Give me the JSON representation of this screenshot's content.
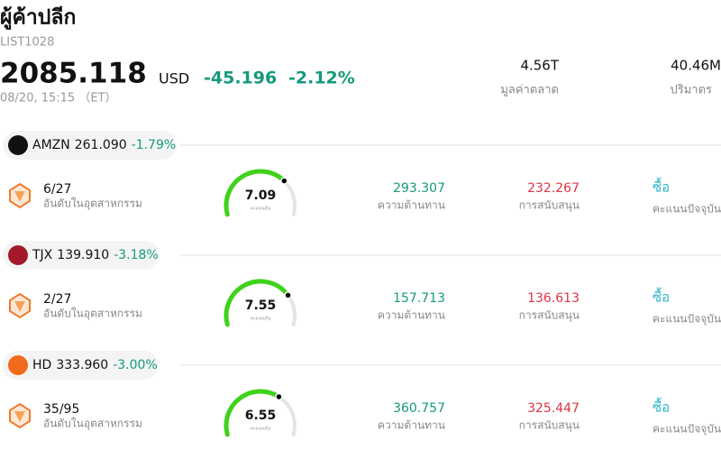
{
  "header": {
    "title": "ผู้ค้าปลีก",
    "code": "LIST1028",
    "price": "2085.118",
    "currency": "USD",
    "change": "-45.196",
    "change_pct": "-2.12%",
    "time": "08/20, 15:15 （ET）",
    "stats": [
      {
        "value": "4.56T",
        "label": "มูลค่าตลาด"
      },
      {
        "value": "40.46M",
        "label": "ปริมาตร"
      }
    ]
  },
  "stocks": [
    {
      "ticker": "AMZN",
      "price": "261.090",
      "change": "-1.79%",
      "rank": "6/27",
      "rank_label": "อันดับในอุตสาหกรรม",
      "score": 7.09,
      "score_label": "คะแนนหุ้น",
      "resistance": "293.307",
      "resistance_label": "ความต้านทาน",
      "support": "232.267",
      "support_label": "การสนับสนุน",
      "rating": "ซื้อ",
      "rating_label": "คะแนนปัจจุบัน"
    },
    {
      "ticker": "TJX",
      "price": "139.910",
      "change": "-3.18%",
      "rank": "2/27",
      "rank_label": "อันดับในอุตสาหกรรม",
      "score": 7.55,
      "score_label": "คะแนนหุ้น",
      "resistance": "157.713",
      "resistance_label": "ความต้านทาน",
      "support": "136.613",
      "support_label": "การสนับสนุน",
      "rating": "ซื้อ",
      "rating_label": "คะแนนปัจจุบัน"
    },
    {
      "ticker": "HD",
      "price": "333.960",
      "change": "-3.00%",
      "rank": "35/95",
      "rank_label": "อันดับในอุตสาหกรรม",
      "score": 6.55,
      "score_label": "คะแนนหุ้น",
      "resistance": "360.757",
      "resistance_label": "ความต้านทาน",
      "support": "325.447",
      "support_label": "การสนับสนุน",
      "rating": "ซื้อ",
      "rating_label": "คะแนนปัจจุบัน"
    }
  ]
}
